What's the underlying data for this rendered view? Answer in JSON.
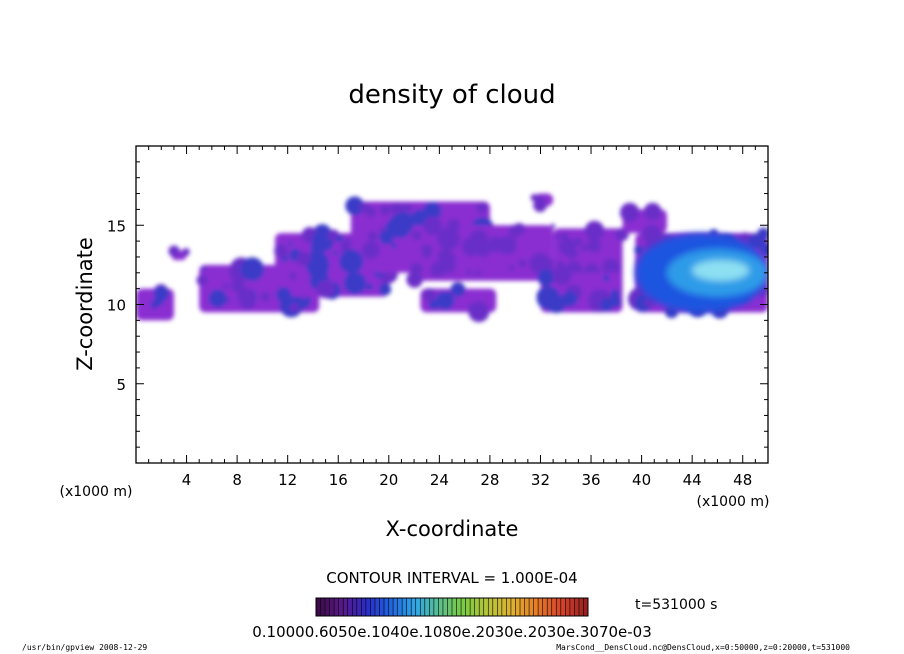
{
  "chart_data": {
    "type": "heatmap",
    "title": "density of cloud",
    "xlabel": "X-coordinate",
    "ylabel": "Z-coordinate",
    "x_unit": "(x1000 m)",
    "y_unit": "(x1000 m)",
    "xlim": [
      0,
      50
    ],
    "ylim": [
      0,
      20
    ],
    "x_ticks": [
      4,
      8,
      12,
      16,
      20,
      24,
      28,
      32,
      36,
      40,
      44,
      48
    ],
    "y_ticks": [
      5,
      10,
      15
    ],
    "contour_interval_text": "CONTOUR INTERVAL = 1.000E-04",
    "time_text": "t=531000 s",
    "colorbar_labels_text": "0.10000.6050e.1040e.1080e.2030e.2030e.3070e-03",
    "colorbar_colors": [
      "#3d0a4a",
      "#5a1a8a",
      "#2a2cc8",
      "#1f66e0",
      "#2fa6e8",
      "#5cc08c",
      "#7ccb3e",
      "#b8c43a",
      "#e0b030",
      "#e57b27",
      "#d6432a",
      "#9a2020"
    ],
    "field_colors": {
      "edge": "#8a2fd2",
      "low": "#6a2ec8",
      "mid": "#3a3ac8",
      "high": "#1f55e0",
      "peak": "#2f9be8",
      "max": "#8de0f2"
    },
    "cloud_regions_x1000m": [
      {
        "x": [
          0,
          3
        ],
        "z": [
          9,
          11
        ],
        "level": "mid"
      },
      {
        "x": [
          2.8,
          4
        ],
        "z": [
          12.8,
          13.4
        ],
        "level": "low"
      },
      {
        "x": [
          5,
          14.5
        ],
        "z": [
          9.5,
          12.5
        ],
        "level": "mid"
      },
      {
        "x": [
          11,
          20
        ],
        "z": [
          10.5,
          14.5
        ],
        "level": "mid"
      },
      {
        "x": [
          17,
          28
        ],
        "z": [
          12,
          16.5
        ],
        "level": "mid"
      },
      {
        "x": [
          22,
          33
        ],
        "z": [
          11.5,
          15
        ],
        "level": "low"
      },
      {
        "x": [
          22.5,
          28.5
        ],
        "z": [
          9.5,
          11
        ],
        "level": "mid"
      },
      {
        "x": [
          31.5,
          33
        ],
        "z": [
          16.2,
          17
        ],
        "level": "low"
      },
      {
        "x": [
          33,
          38.5
        ],
        "z": [
          11.5,
          14.8
        ],
        "level": "low"
      },
      {
        "x": [
          32,
          38.5
        ],
        "z": [
          9.5,
          12
        ],
        "level": "mid"
      },
      {
        "x": [
          38.5,
          42
        ],
        "z": [
          14.5,
          16
        ],
        "level": "low"
      },
      {
        "x": [
          39.5,
          50
        ],
        "z": [
          9.5,
          14.5
        ],
        "level": "high"
      },
      {
        "x": [
          42,
          50
        ],
        "z": [
          10.5,
          13.5
        ],
        "level": "peak"
      },
      {
        "x": [
          44,
          48.5
        ],
        "z": [
          11.5,
          12.8
        ],
        "level": "max"
      }
    ]
  },
  "footer": {
    "left": "/usr/bin/gpview  2008-12-29",
    "right": "MarsCond__DensCloud.nc@DensCloud,x=0:50000,z=0:20000,t=531000"
  }
}
